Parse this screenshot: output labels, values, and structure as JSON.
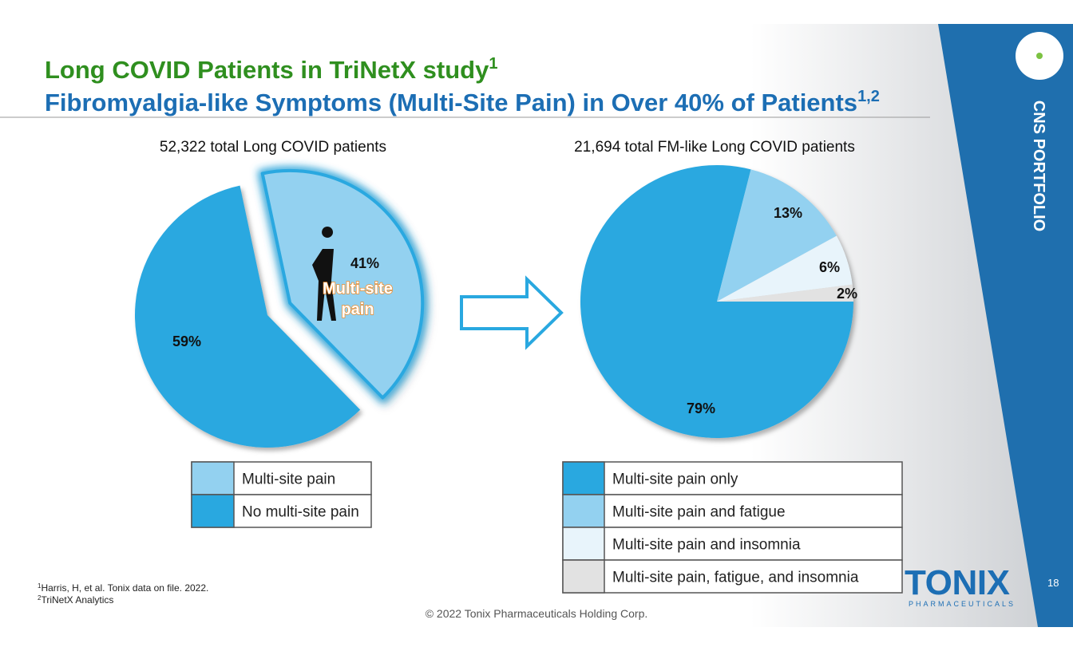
{
  "slide": {
    "title_line1": "Long COVID Patients in TriNetX study",
    "title_line1_sup": "1",
    "title_line2": "Fibromyalgia-like Symptoms (Multi-Site Pain) in Over 40% of Patients",
    "title_line2_sup": "1,2",
    "side_label": "CNS PORTFOLIO",
    "logo": "TONIX",
    "logo_sub": "PHARMACEUTICALS",
    "page_number": "18",
    "footnotes": [
      {
        "sup": "1",
        "text": "Harris, H, et al. Tonix data on file. 2022."
      },
      {
        "sup": "2",
        "text": "TriNetX Analytics"
      }
    ],
    "copyright": "© 2022 Tonix Pharmaceuticals Holding Corp."
  },
  "chart_data": [
    {
      "type": "pie",
      "title": "52,322 total Long COVID patients",
      "categories": [
        "Multi-site pain",
        "No multi-site pain"
      ],
      "values": [
        41,
        59
      ],
      "value_labels": [
        "41%",
        "59%"
      ],
      "colors": [
        "#93d1f0",
        "#29a8e0"
      ],
      "annotation": "Multi-site pain"
    },
    {
      "type": "pie",
      "title": "21,694 total FM-like Long COVID patients",
      "categories": [
        "Multi-site pain only",
        "Multi-site pain and fatigue",
        "Multi-site pain and insomnia",
        "Multi-site pain, fatigue, and insomnia"
      ],
      "values": [
        79,
        13,
        6,
        2
      ],
      "value_labels": [
        "79%",
        "13%",
        "6%",
        "2%"
      ],
      "colors": [
        "#29a8e0",
        "#93d1f0",
        "#e8f4fb",
        "#e2e2e2"
      ]
    }
  ]
}
